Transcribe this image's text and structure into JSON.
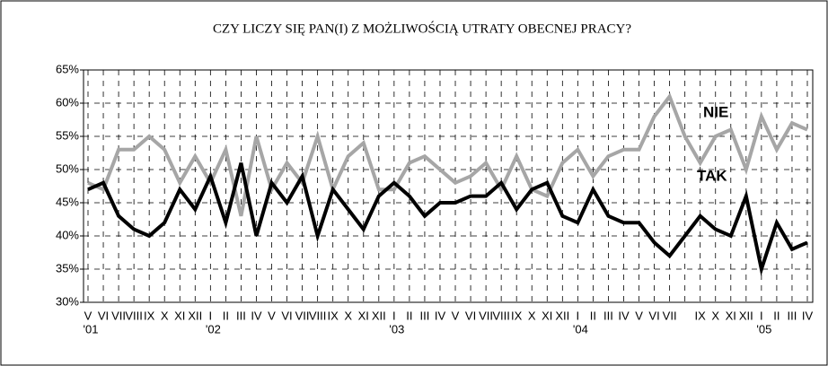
{
  "chart_data": {
    "type": "line",
    "title": "CZY LICZY SIĘ PAN(I) Z MOŻLIWOŚCIĄ UTRATY OBECNEJ PRACY?",
    "categories": [
      "V",
      "VI",
      "VII",
      "VIII",
      "IX",
      "X",
      "XI",
      "XII",
      "I",
      "II",
      "III",
      "IV",
      "V",
      "VI",
      "VII",
      "VIII",
      "IX",
      "X",
      "XI",
      "XII",
      "I",
      "II",
      "III",
      "IV",
      "V",
      "VI",
      "VII",
      "VIII",
      "IX",
      "X",
      "XI",
      "XII",
      "I",
      "II",
      "III",
      "IV",
      "V",
      "VI",
      "VII",
      null,
      "IX",
      "X",
      "XI",
      "XII",
      "I",
      "II",
      "III",
      "IV"
    ],
    "year_labels": [
      "'01",
      null,
      null,
      null,
      null,
      null,
      null,
      null,
      "'02",
      null,
      null,
      null,
      null,
      null,
      null,
      null,
      null,
      null,
      null,
      null,
      "'03",
      null,
      null,
      null,
      null,
      null,
      null,
      null,
      null,
      null,
      null,
      null,
      "'04",
      null,
      null,
      null,
      null,
      null,
      null,
      null,
      null,
      null,
      null,
      null,
      "'05",
      null,
      null,
      null
    ],
    "series": [
      {
        "name": "NIE",
        "color": "#a6a6a6",
        "values": [
          48,
          47,
          53,
          53,
          55,
          53,
          48,
          52,
          48,
          53,
          43,
          55,
          47,
          51,
          48,
          55,
          47,
          52,
          54,
          47,
          47,
          51,
          52,
          50,
          48,
          49,
          51,
          47,
          52,
          47,
          46,
          51,
          53,
          49,
          52,
          53,
          53,
          58,
          61,
          55,
          51,
          55,
          56,
          50,
          58,
          53,
          57,
          56
        ]
      },
      {
        "name": "TAK",
        "color": "#000000",
        "values": [
          47,
          48,
          43,
          41,
          40,
          42,
          47,
          44,
          49,
          42,
          51,
          40,
          48,
          45,
          49,
          40,
          47,
          44,
          41,
          46,
          48,
          46,
          43,
          45,
          45,
          46,
          46,
          48,
          44,
          47,
          48,
          43,
          42,
          47,
          43,
          42,
          42,
          39,
          37,
          40,
          43,
          41,
          40,
          46,
          35,
          42,
          38,
          39
        ]
      }
    ],
    "ylim": [
      30,
      65
    ],
    "yticks": [
      {
        "value": 30,
        "label": "30%"
      },
      {
        "value": 35,
        "label": "35%"
      },
      {
        "value": 40,
        "label": "40%"
      },
      {
        "value": 45,
        "label": "45%"
      },
      {
        "value": 50,
        "label": "50%"
      },
      {
        "value": 55,
        "label": "55%"
      },
      {
        "value": 60,
        "label": "60%"
      },
      {
        "value": 65,
        "label": "65%"
      }
    ],
    "grid": true
  }
}
